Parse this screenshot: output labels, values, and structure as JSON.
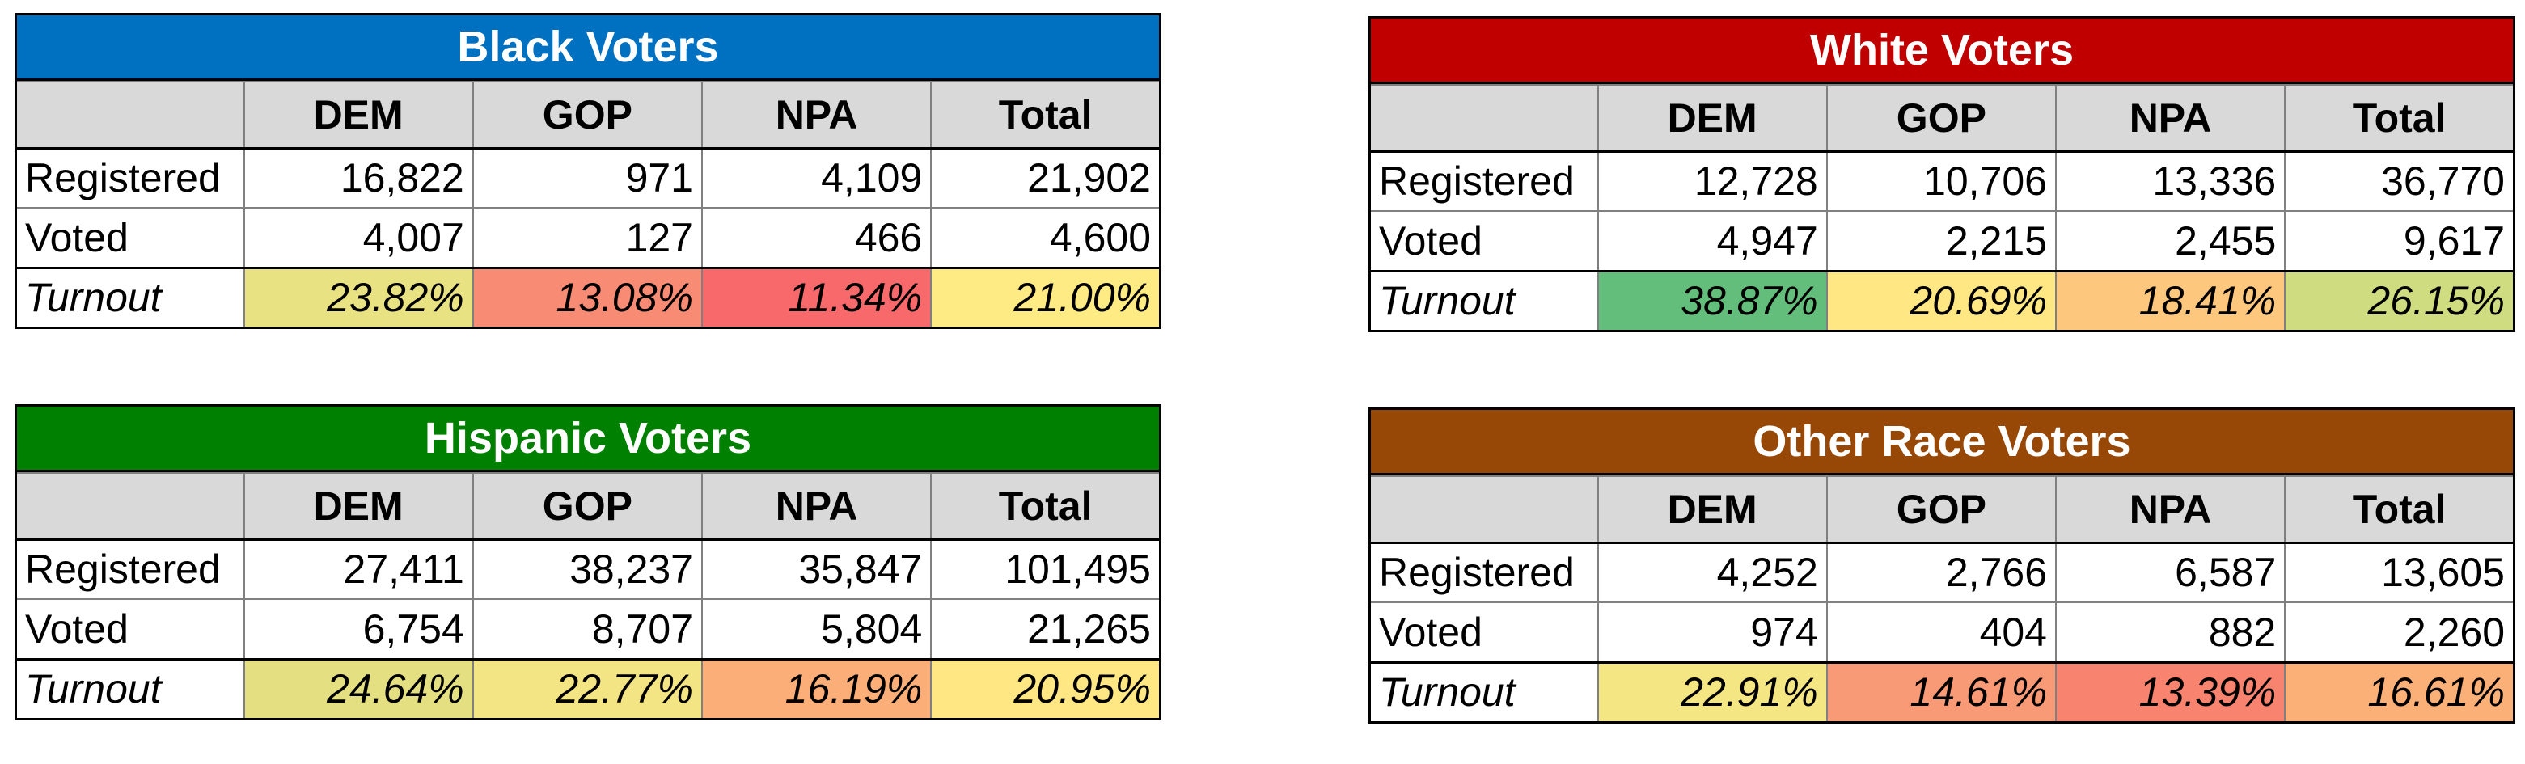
{
  "headers": [
    "",
    "DEM",
    "GOP",
    "NPA",
    "Total"
  ],
  "panels": [
    {
      "title": "Black Voters",
      "title_color": "#0070C0",
      "rows": [
        {
          "label": "Registered",
          "values": [
            "16,822",
            "971",
            "4,109",
            "21,902"
          ]
        },
        {
          "label": "Voted",
          "values": [
            "4,007",
            "127",
            "466",
            "4,600"
          ]
        },
        {
          "label": "Turnout",
          "values": [
            "23.82%",
            "13.08%",
            "11.34%",
            "21.00%"
          ],
          "colors": [
            "#E9E283",
            "#F88B74",
            "#F8696B",
            "#FFEB84"
          ]
        }
      ]
    },
    {
      "title": "White Voters",
      "title_color": "#C00000",
      "rows": [
        {
          "label": "Registered",
          "values": [
            "12,728",
            "10,706",
            "13,336",
            "36,770"
          ]
        },
        {
          "label": "Voted",
          "values": [
            "4,947",
            "2,215",
            "2,455",
            "9,617"
          ]
        },
        {
          "label": "Turnout",
          "values": [
            "38.87%",
            "20.69%",
            "18.41%",
            "26.15%"
          ],
          "colors": [
            "#63BE7B",
            "#FFE783",
            "#FDC77D",
            "#CFDD80"
          ]
        }
      ]
    },
    {
      "title": "Hispanic Voters",
      "title_color": "#008000",
      "rows": [
        {
          "label": "Registered",
          "values": [
            "27,411",
            "38,237",
            "35,847",
            "101,495"
          ]
        },
        {
          "label": "Voted",
          "values": [
            "6,754",
            "8,707",
            "5,804",
            "21,265"
          ]
        },
        {
          "label": "Turnout",
          "values": [
            "24.64%",
            "22.77%",
            "16.19%",
            "20.95%"
          ],
          "colors": [
            "#E4E082",
            "#F3E584",
            "#FBAE78",
            "#FFE884"
          ]
        }
      ]
    },
    {
      "title": "Other Race Voters",
      "title_color": "#974706",
      "rows": [
        {
          "label": "Registered",
          "values": [
            "4,252",
            "2,766",
            "6,587",
            "13,605"
          ]
        },
        {
          "label": "Voted",
          "values": [
            "974",
            "404",
            "882",
            "2,260"
          ]
        },
        {
          "label": "Turnout",
          "values": [
            "22.91%",
            "14.61%",
            "13.39%",
            "16.61%"
          ],
          "colors": [
            "#F5E684",
            "#F99A76",
            "#F8836F",
            "#FBB078"
          ]
        }
      ]
    }
  ]
}
